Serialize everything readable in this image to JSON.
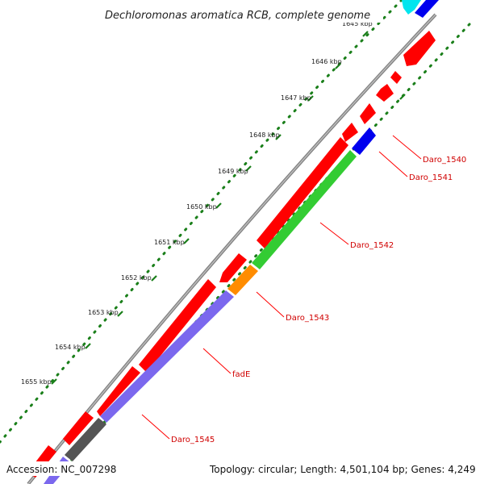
{
  "title": "Dechloromonas aromatica RCB, complete genome",
  "footer": {
    "accession": "Accession: NC_007298",
    "summary": "Topology: circular; Length: 4,501,104 bp; Genes: 4,249"
  },
  "scale_labels": [
    "1645 kbp",
    "1646 kbp",
    "1647 kbp",
    "1648 kbp",
    "1649 kbp",
    "1650 kbp",
    "1651 kbp",
    "1652 kbp",
    "1653 kbp",
    "1654 kbp",
    "1655 kbp"
  ],
  "gene_labels": [
    "Daro_1540",
    "Daro_1541",
    "Daro_1542",
    "Daro_1543",
    "fadE",
    "Daro_1545"
  ],
  "colors": {
    "backbone": "#808080",
    "reverse_cds": "#ff0000",
    "forward_green": "#33cc33",
    "forward_blue": "#0000ee",
    "forward_orange": "#ff8c00",
    "forward_purple": "#7b68ee",
    "forward_gray": "#555555",
    "cyan_feature": "#00e5ee",
    "tick": "#1a7f1a",
    "label": "#d00000"
  }
}
